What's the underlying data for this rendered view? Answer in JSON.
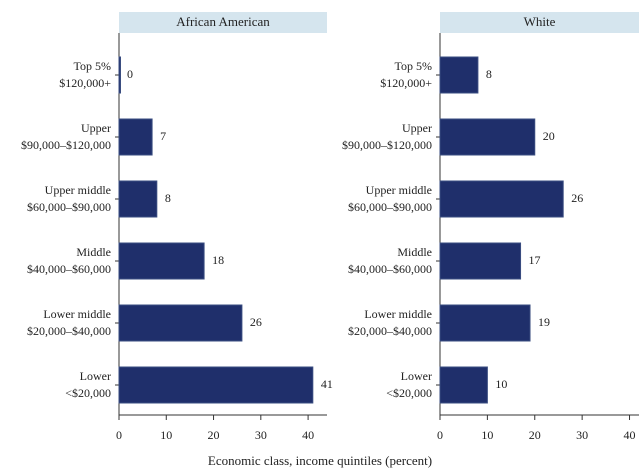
{
  "chart_data": [
    {
      "type": "bar",
      "orientation": "horizontal",
      "title": "African American",
      "categories": [
        [
          "Top 5%",
          "$120,000+"
        ],
        [
          "Upper",
          "$90,000–$120,000"
        ],
        [
          "Upper middle",
          "$60,000–$90,000"
        ],
        [
          "Middle",
          "$40,000–$60,000"
        ],
        [
          "Lower middle",
          "$20,000–$40,000"
        ],
        [
          "Lower",
          "<$20,000"
        ]
      ],
      "values": [
        0,
        7,
        8,
        18,
        26,
        41
      ],
      "color": "#1f2f6b",
      "xlim": [
        0,
        44
      ],
      "xticks": [
        0,
        10,
        20,
        30,
        40
      ]
    },
    {
      "type": "bar",
      "orientation": "horizontal",
      "title": "White",
      "categories": [
        [
          "Top 5%",
          "$120,000+"
        ],
        [
          "Upper",
          "$90,000–$120,000"
        ],
        [
          "Upper middle",
          "$60,000–$90,000"
        ],
        [
          "Middle",
          "$40,000–$60,000"
        ],
        [
          "Lower middle",
          "$20,000–$40,000"
        ],
        [
          "Lower",
          "<$20,000"
        ]
      ],
      "values": [
        8,
        20,
        26,
        17,
        19,
        10
      ],
      "color": "#1f2f6b",
      "xlim": [
        0,
        42
      ],
      "xticks": [
        0,
        10,
        20,
        30,
        40
      ]
    }
  ],
  "x_label": "Economic class, income quintiles (percent)"
}
